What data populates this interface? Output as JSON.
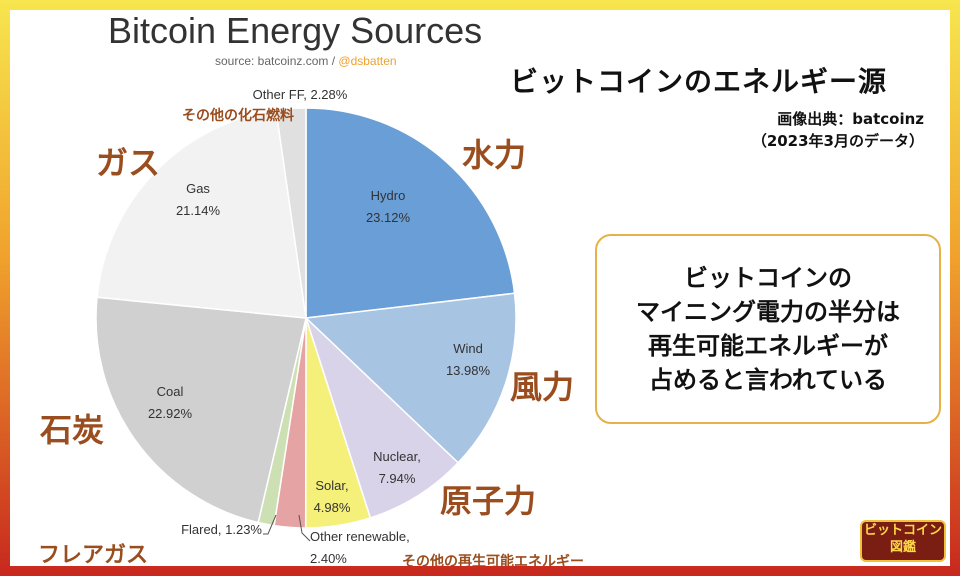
{
  "chart_data": {
    "type": "pie",
    "title": "Bitcoin Energy Sources",
    "source": "source: batcoinz.com / ",
    "source_handle": "@dsbatten",
    "start_angle_deg": 0,
    "direction": "clockwise",
    "slices": [
      {
        "label": "Hydro",
        "value": 23.12,
        "value_label": "23.12%",
        "color": "#6a9ed6",
        "jp_label": "水力"
      },
      {
        "label": "Wind",
        "value": 13.98,
        "value_label": "13.98%",
        "color": "#a7c4e3",
        "jp_label": "風力"
      },
      {
        "label": "Nuclear,",
        "value": 7.94,
        "value_label": "7.94%",
        "color": "#d9d3e9",
        "jp_label": "原子力"
      },
      {
        "label": "Solar,",
        "value": 4.98,
        "value_label": "4.98%",
        "color": "#f5f07a",
        "jp_label": ""
      },
      {
        "label": "Other renewable,",
        "value": 2.4,
        "value_label": "2.40%",
        "color": "#e6a3a3",
        "jp_label": "その他の再生可能エネルギー"
      },
      {
        "label": "Flared, 1.23%",
        "value": 1.23,
        "value_label": "",
        "color": "#cde0b4",
        "jp_label": "フレアガス"
      },
      {
        "label": "Coal",
        "value": 22.92,
        "value_label": "22.92%",
        "color": "#d0d0d0",
        "jp_label": "石炭"
      },
      {
        "label": "Gas",
        "value": 21.14,
        "value_label": "21.14%",
        "color": "#f2f2f2",
        "jp_label": "ガス"
      },
      {
        "label": "Other FF, 2.28%",
        "value": 2.28,
        "value_label": "",
        "color": "#e0e0e0",
        "jp_label": "その他の化石燃料"
      }
    ]
  },
  "heading": "ビットコインのエネルギー源",
  "credit": {
    "line1": "画像出典：batcoinz",
    "line2": "（2023年3月のデータ）"
  },
  "callout": {
    "lines": [
      "ビットコインの",
      "マイニング電力の半分は",
      "再生可能エネルギーが",
      "占めると言われている"
    ]
  },
  "logo": {
    "top": "ビットコイン",
    "bottom": "図鑑"
  },
  "colors": {
    "accent": "#9a4d1e",
    "callout_border": "#e6b247",
    "frame_top": "#f7e64e",
    "frame_bottom": "#c8281e"
  }
}
